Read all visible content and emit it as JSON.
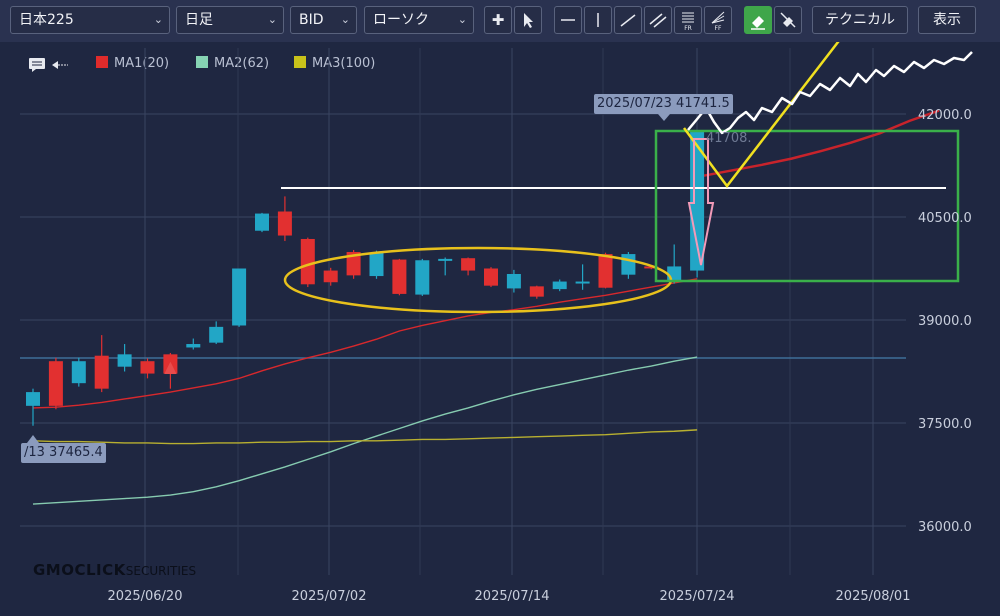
{
  "toolbar": {
    "instrument": "日本225",
    "timeframe": "日足",
    "price_type": "BID",
    "chart_type": "ローソク",
    "technical_button": "テクニカル",
    "display_button": "表示",
    "ff_label": "FF",
    "fr_label": "FR"
  },
  "legend": [
    {
      "label": "MA1(20)",
      "color": "#e02b2b"
    },
    {
      "label": "MA2(62)",
      "color": "#86d3b3"
    },
    {
      "label": "MA3(100)",
      "color": "#c9c21a"
    }
  ],
  "tooltips": {
    "top": "2025/07/23 41741.5",
    "bottom": "/13 37465.4",
    "faint_value": "41708."
  },
  "watermark": {
    "main": "GMOCLICK",
    "sub": "SECURITIES"
  },
  "chart_data": {
    "type": "candlestick",
    "ylim": [
      35600,
      42900
    ],
    "y_ticks": [
      42000,
      40500,
      39000,
      37500,
      36000
    ],
    "y_tick_labels": [
      "42000.0",
      "40500.0",
      "39000.0",
      "37500.0",
      "36000.0"
    ],
    "x_tick_labels": [
      "2025/06/20",
      "2025/07/02",
      "2025/07/14",
      "2025/07/24",
      "2025/08/01"
    ],
    "up_color": "#22a6c6",
    "down_color": "#e23030",
    "candles": [
      {
        "o": 37750,
        "c": 37950,
        "h": 38000,
        "l": 37460
      },
      {
        "o": 38400,
        "c": 37750,
        "h": 38450,
        "l": 37700
      },
      {
        "o": 38080,
        "c": 38400,
        "h": 38450,
        "l": 38030
      },
      {
        "o": 38480,
        "c": 38000,
        "h": 38780,
        "l": 37950
      },
      {
        "o": 38320,
        "c": 38500,
        "h": 38650,
        "l": 38250
      },
      {
        "o": 38400,
        "c": 38220,
        "h": 38440,
        "l": 38150
      },
      {
        "o": 38500,
        "c": 38220,
        "h": 38520,
        "l": 38000
      },
      {
        "o": 38600,
        "c": 38650,
        "h": 38730,
        "l": 38570
      },
      {
        "o": 38670,
        "c": 38900,
        "h": 38980,
        "l": 38650
      },
      {
        "o": 38920,
        "c": 39750,
        "h": 39750,
        "l": 38900
      },
      {
        "o": 40300,
        "c": 40550,
        "h": 40560,
        "l": 40280
      },
      {
        "o": 40580,
        "c": 40230,
        "h": 40800,
        "l": 40150
      },
      {
        "o": 40180,
        "c": 39520,
        "h": 40200,
        "l": 39480
      },
      {
        "o": 39720,
        "c": 39550,
        "h": 39760,
        "l": 39500
      },
      {
        "o": 39990,
        "c": 39650,
        "h": 40020,
        "l": 39600
      },
      {
        "o": 39640,
        "c": 39980,
        "h": 40010,
        "l": 39600
      },
      {
        "o": 39880,
        "c": 39380,
        "h": 39890,
        "l": 39360
      },
      {
        "o": 39370,
        "c": 39870,
        "h": 39890,
        "l": 39350
      },
      {
        "o": 39880,
        "c": 39890,
        "h": 39910,
        "l": 39650
      },
      {
        "o": 39900,
        "c": 39720,
        "h": 39910,
        "l": 39650
      },
      {
        "o": 39750,
        "c": 39500,
        "h": 39770,
        "l": 39480
      },
      {
        "o": 39460,
        "c": 39670,
        "h": 39730,
        "l": 39400
      },
      {
        "o": 39490,
        "c": 39340,
        "h": 39500,
        "l": 39310
      },
      {
        "o": 39450,
        "c": 39560,
        "h": 39590,
        "l": 39420
      },
      {
        "o": 39560,
        "c": 39560,
        "h": 39810,
        "l": 39440
      },
      {
        "o": 39960,
        "c": 39470,
        "h": 39980,
        "l": 39460
      },
      {
        "o": 39660,
        "c": 39960,
        "h": 39990,
        "l": 39600
      },
      {
        "o": 39780,
        "c": 39760,
        "h": 39800,
        "l": 39740
      },
      {
        "o": 39580,
        "c": 39780,
        "h": 40100,
        "l": 39530
      },
      {
        "o": 39720,
        "c": 41741.5,
        "h": 41741.5,
        "l": 39620
      }
    ],
    "series": [
      {
        "name": "MA1(20)",
        "color": "#d8282c",
        "values": [
          37720,
          37730,
          37760,
          37800,
          37850,
          37900,
          37950,
          38010,
          38070,
          38150,
          38260,
          38360,
          38450,
          38530,
          38620,
          38720,
          38840,
          38920,
          38990,
          39060,
          39110,
          39150,
          39200,
          39260,
          39310,
          39360,
          39420,
          39480,
          39540,
          39600
        ]
      },
      {
        "name": "MA2(62)",
        "color": "#86cbb0",
        "values": [
          36320,
          36340,
          36360,
          36380,
          36400,
          36420,
          36450,
          36500,
          36570,
          36660,
          36760,
          36860,
          36970,
          37080,
          37200,
          37310,
          37420,
          37530,
          37630,
          37720,
          37820,
          37910,
          37990,
          38060,
          38130,
          38200,
          38270,
          38330,
          38400,
          38460
        ]
      },
      {
        "name": "MA3(100)",
        "color": "#b8b030",
        "values": [
          37240,
          37230,
          37230,
          37220,
          37210,
          37210,
          37200,
          37200,
          37210,
          37210,
          37220,
          37220,
          37230,
          37230,
          37240,
          37240,
          37250,
          37260,
          37260,
          37270,
          37280,
          37290,
          37300,
          37310,
          37320,
          37330,
          37350,
          37370,
          37380,
          37400
        ]
      },
      {
        "name": "",
        "color": "#c8232b",
        "values": [
          41100,
          41180,
          41260,
          41350,
          41460,
          41580,
          41720,
          41900,
          42050
        ]
      }
    ],
    "markers": [
      {
        "index": 6,
        "label": "▲",
        "color": "#e94c4c"
      }
    ]
  }
}
